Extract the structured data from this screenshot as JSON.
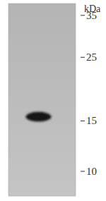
{
  "chart_data": {
    "type": "western_blot",
    "y_label": "kDa",
    "categories": [
      null
    ],
    "values": [
      15.5
    ],
    "color": "#141414",
    "ylim": [
      8.2,
      38.5
    ],
    "yticks": [
      10,
      15,
      25,
      35
    ],
    "log": "y",
    "grid": false
  }
}
